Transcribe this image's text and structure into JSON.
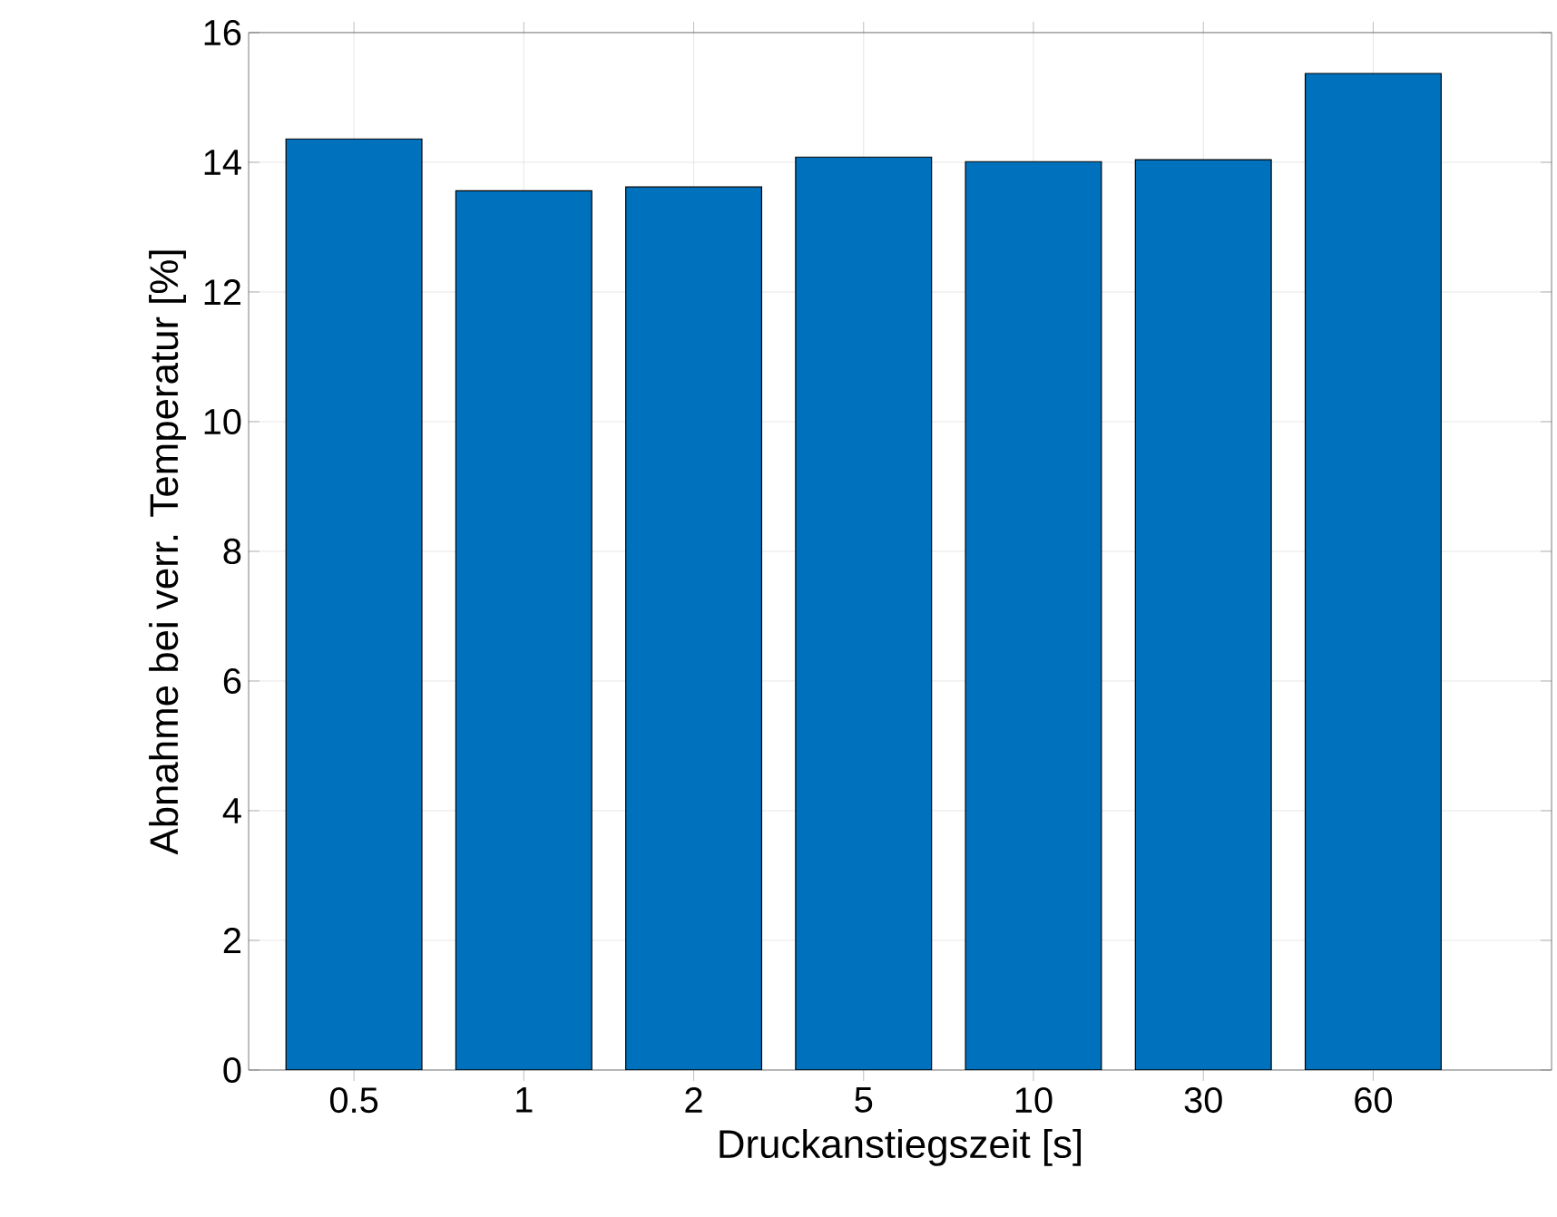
{
  "chart_data": {
    "type": "bar",
    "xlabel": "Druckanstiegszeit [s]",
    "ylabel": "Abnahme bei verr. Temperatur [%]",
    "categories": [
      "0.5",
      "1",
      "2",
      "5",
      "10",
      "30",
      "60"
    ],
    "values": [
      14.36,
      13.56,
      13.62,
      14.08,
      14.01,
      14.04,
      15.37
    ],
    "color": "#0072bd",
    "ylim": [
      0,
      16
    ],
    "yticks": [
      0,
      2,
      4,
      6,
      8,
      10,
      12,
      14,
      16
    ],
    "grid": true
  }
}
